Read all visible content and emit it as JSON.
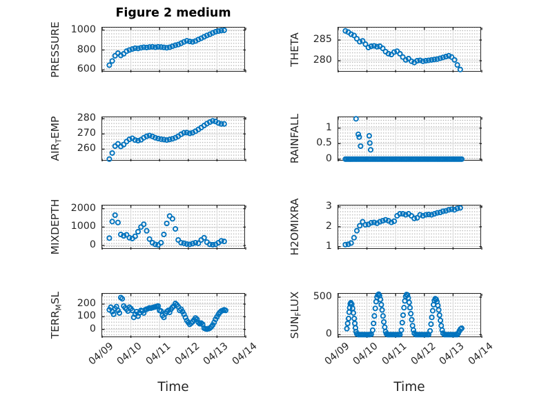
{
  "figure": {
    "title": "Figure 2 medium",
    "colors": {
      "marker": "#0072BD",
      "axis": "#222222",
      "grid_major": "#d9d9d9",
      "grid_minor": "#b3b3b3",
      "text": "#262626"
    }
  },
  "xaxis": {
    "label": "Time",
    "tick_labels": [
      "04/09",
      "04/10",
      "04/11",
      "04/12",
      "04/13",
      "04/14"
    ]
  },
  "chart_data": [
    {
      "type": "scatter",
      "key": "pressure",
      "ylabel_parts": [
        {
          "text": "PRESSURE",
          "sub": false
        }
      ],
      "ylim": [
        575,
        1025
      ],
      "yticks": [
        600,
        800,
        1000
      ],
      "xlim": [
        0,
        5
      ],
      "xticks": [
        0,
        1,
        2,
        3,
        4,
        5
      ],
      "show_xticklabels": false,
      "x": [
        0.25,
        0.35,
        0.45,
        0.55,
        0.65,
        0.75,
        0.85,
        0.95,
        1.05,
        1.15,
        1.25,
        1.35,
        1.45,
        1.55,
        1.65,
        1.75,
        1.85,
        1.95,
        2.05,
        2.15,
        2.25,
        2.35,
        2.45,
        2.55,
        2.65,
        2.75,
        2.85,
        2.95,
        3.05,
        3.15,
        3.25,
        3.35,
        3.45,
        3.55,
        3.65,
        3.75,
        3.85,
        3.95,
        4.05,
        4.15,
        4.25
      ],
      "y": [
        648,
        690,
        742,
        768,
        745,
        762,
        788,
        800,
        810,
        818,
        815,
        822,
        828,
        825,
        830,
        832,
        828,
        832,
        830,
        826,
        822,
        828,
        838,
        848,
        855,
        868,
        882,
        892,
        886,
        882,
        890,
        905,
        918,
        932,
        946,
        958,
        972,
        983,
        990,
        995,
        998
      ]
    },
    {
      "type": "scatter",
      "key": "theta",
      "ylabel_parts": [
        {
          "text": "THETA",
          "sub": false
        }
      ],
      "ylim": [
        277.2,
        288.0
      ],
      "yticks": [
        280,
        285
      ],
      "xlim": [
        0,
        5
      ],
      "xticks": [
        0,
        1,
        2,
        3,
        4,
        5
      ],
      "show_xticklabels": false,
      "x": [
        0.25,
        0.35,
        0.45,
        0.55,
        0.65,
        0.75,
        0.85,
        0.95,
        1.05,
        1.15,
        1.25,
        1.35,
        1.45,
        1.55,
        1.65,
        1.75,
        1.85,
        1.95,
        2.05,
        2.15,
        2.25,
        2.35,
        2.45,
        2.55,
        2.65,
        2.75,
        2.85,
        2.95,
        3.05,
        3.15,
        3.25,
        3.35,
        3.45,
        3.55,
        3.65,
        3.75,
        3.85,
        3.95,
        4.05,
        4.15,
        4.25
      ],
      "y": [
        287.2,
        286.9,
        286.4,
        286.1,
        285.3,
        284.6,
        284.8,
        284.0,
        283.2,
        283.5,
        283.6,
        283.4,
        283.5,
        283.0,
        282.2,
        281.7,
        281.5,
        282.1,
        282.3,
        281.7,
        280.9,
        280.2,
        280.5,
        279.9,
        279.6,
        280.0,
        280.1,
        279.9,
        280.0,
        280.1,
        280.2,
        280.3,
        280.4,
        280.6,
        280.8,
        281.0,
        281.2,
        280.9,
        280.2,
        279.0,
        277.9
      ]
    },
    {
      "type": "scatter",
      "key": "air-temp",
      "ylabel_parts": [
        {
          "text": "AIR",
          "sub": false
        },
        {
          "text": "T",
          "sub": true
        },
        {
          "text": "EMP",
          "sub": false
        }
      ],
      "ylim": [
        252,
        281
      ],
      "yticks": [
        260,
        270,
        280
      ],
      "xlim": [
        0,
        5
      ],
      "xticks": [
        0,
        1,
        2,
        3,
        4,
        5
      ],
      "show_xticklabels": false,
      "x": [
        0.25,
        0.35,
        0.45,
        0.55,
        0.65,
        0.75,
        0.85,
        0.95,
        1.05,
        1.15,
        1.25,
        1.35,
        1.45,
        1.55,
        1.65,
        1.75,
        1.85,
        1.95,
        2.05,
        2.15,
        2.25,
        2.35,
        2.45,
        2.55,
        2.65,
        2.75,
        2.85,
        2.95,
        3.05,
        3.15,
        3.25,
        3.35,
        3.45,
        3.55,
        3.65,
        3.75,
        3.85,
        3.95,
        4.05,
        4.15,
        4.25
      ],
      "y": [
        253.5,
        257.5,
        262.0,
        263.5,
        261.8,
        263.0,
        265.0,
        266.5,
        267.2,
        266.0,
        265.6,
        266.2,
        267.5,
        268.5,
        269.0,
        268.4,
        267.5,
        267.0,
        266.6,
        266.3,
        266.0,
        266.4,
        266.8,
        267.5,
        268.5,
        269.8,
        270.8,
        270.9,
        270.4,
        270.8,
        271.8,
        273.0,
        274.2,
        275.5,
        276.8,
        277.8,
        278.6,
        278.2,
        277.2,
        276.6,
        276.6
      ]
    },
    {
      "type": "scatter",
      "key": "rainfall",
      "ylabel_parts": [
        {
          "text": "RAINFALL",
          "sub": false
        }
      ],
      "ylim": [
        -0.07,
        1.35
      ],
      "yticks": [
        0,
        0.5,
        1
      ],
      "xlim": [
        0,
        5
      ],
      "xticks": [
        0,
        1,
        2,
        3,
        4,
        5
      ],
      "show_xticklabels": false,
      "x": [
        0.25,
        0.3,
        0.35,
        0.4,
        0.45,
        0.5,
        0.55,
        0.6,
        0.65,
        0.7,
        0.75,
        0.8,
        0.85,
        0.9,
        0.95,
        1.0,
        1.05,
        1.1,
        1.15,
        1.2,
        1.25,
        1.3,
        1.35,
        1.4,
        1.45,
        1.5,
        1.55,
        1.6,
        1.65,
        1.7,
        1.75,
        1.8,
        1.85,
        1.9,
        1.95,
        2.0,
        2.05,
        2.1,
        2.15,
        2.2,
        2.25,
        2.3,
        2.35,
        2.4,
        2.45,
        2.5,
        2.55,
        2.6,
        2.65,
        2.7,
        2.75,
        2.8,
        2.85,
        2.9,
        2.95,
        3.0,
        3.05,
        3.1,
        3.15,
        3.2,
        3.25,
        3.3,
        3.35,
        3.4,
        3.45,
        3.5,
        3.55,
        3.6,
        3.65,
        3.7,
        3.75,
        3.8,
        3.85,
        3.9,
        3.95,
        4.0,
        4.05,
        4.1,
        4.15,
        4.2,
        4.25,
        4.3,
        0.62,
        0.7,
        0.73,
        0.78,
        1.08,
        1.1,
        1.13
      ],
      "y": [
        0,
        0,
        0,
        0,
        0,
        0,
        0,
        0,
        0,
        0,
        0,
        0,
        0,
        0,
        0,
        0,
        0,
        0,
        0,
        0,
        0,
        0,
        0,
        0,
        0,
        0,
        0,
        0,
        0,
        0,
        0,
        0,
        0,
        0,
        0,
        0,
        0,
        0,
        0,
        0,
        0,
        0,
        0,
        0,
        0,
        0,
        0,
        0,
        0,
        0,
        0,
        0,
        0,
        0,
        0,
        0,
        0,
        0,
        0,
        0,
        0,
        0,
        0,
        0,
        0,
        0,
        0,
        0,
        0,
        0,
        0,
        0,
        0,
        0,
        0,
        0,
        0,
        0,
        0,
        0,
        0,
        0,
        1.3,
        0.8,
        0.71,
        0.42,
        0.75,
        0.52,
        0.3
      ]
    },
    {
      "type": "scatter",
      "key": "mixdepth",
      "ylabel_parts": [
        {
          "text": "MIXDEPTH",
          "sub": false
        }
      ],
      "ylim": [
        -225,
        2175
      ],
      "yticks": [
        0,
        1000,
        2000
      ],
      "xlim": [
        0,
        5
      ],
      "xticks": [
        0,
        1,
        2,
        3,
        4,
        5
      ],
      "show_xticklabels": false,
      "x": [
        0.25,
        0.35,
        0.45,
        0.55,
        0.65,
        0.75,
        0.85,
        0.95,
        1.05,
        1.15,
        1.25,
        1.35,
        1.45,
        1.55,
        1.65,
        1.75,
        1.85,
        1.95,
        2.05,
        2.15,
        2.25,
        2.35,
        2.45,
        2.55,
        2.65,
        2.75,
        2.85,
        2.95,
        3.05,
        3.15,
        3.25,
        3.35,
        3.45,
        3.55,
        3.65,
        3.75,
        3.85,
        3.95,
        4.05,
        4.15,
        4.25
      ],
      "y": [
        400,
        1300,
        1650,
        1250,
        600,
        520,
        580,
        420,
        380,
        500,
        750,
        1000,
        1150,
        800,
        350,
        150,
        60,
        30,
        150,
        600,
        1200,
        1600,
        1450,
        900,
        300,
        150,
        120,
        80,
        60,
        100,
        150,
        120,
        300,
        420,
        180,
        60,
        40,
        60,
        150,
        250,
        220
      ]
    },
    {
      "type": "scatter",
      "key": "h2omixra",
      "ylabel_parts": [
        {
          "text": "H2OMIXRA",
          "sub": false
        }
      ],
      "ylim": [
        0.85,
        3.07
      ],
      "yticks": [
        1,
        2,
        3
      ],
      "xlim": [
        0,
        5
      ],
      "xticks": [
        0,
        1,
        2,
        3,
        4,
        5
      ],
      "show_xticklabels": false,
      "x": [
        0.25,
        0.35,
        0.45,
        0.55,
        0.65,
        0.75,
        0.85,
        0.95,
        1.05,
        1.15,
        1.25,
        1.35,
        1.45,
        1.55,
        1.65,
        1.75,
        1.85,
        1.95,
        2.05,
        2.15,
        2.25,
        2.35,
        2.45,
        2.55,
        2.65,
        2.75,
        2.85,
        2.95,
        3.05,
        3.15,
        3.25,
        3.35,
        3.45,
        3.55,
        3.65,
        3.75,
        3.85,
        3.95,
        4.05,
        4.15,
        4.25
      ],
      "y": [
        1.1,
        1.12,
        1.18,
        1.45,
        1.8,
        2.05,
        2.25,
        2.1,
        2.12,
        2.2,
        2.22,
        2.18,
        2.25,
        2.3,
        2.35,
        2.3,
        2.22,
        2.28,
        2.55,
        2.65,
        2.65,
        2.6,
        2.65,
        2.55,
        2.42,
        2.45,
        2.6,
        2.55,
        2.6,
        2.62,
        2.6,
        2.65,
        2.7,
        2.72,
        2.78,
        2.8,
        2.85,
        2.88,
        2.85,
        2.92,
        2.95
      ]
    },
    {
      "type": "scatter",
      "key": "terr-msl",
      "ylabel_parts": [
        {
          "text": "TERR",
          "sub": false
        },
        {
          "text": "M",
          "sub": true
        },
        {
          "text": "SL",
          "sub": false
        }
      ],
      "ylim": [
        -67,
        282
      ],
      "yticks": [
        0,
        100,
        200
      ],
      "xlim": [
        0,
        5
      ],
      "xticks": [
        0,
        1,
        2,
        3,
        4,
        5
      ],
      "show_xticklabels": true,
      "x": [
        0.25,
        0.3,
        0.35,
        0.4,
        0.45,
        0.5,
        0.55,
        0.6,
        0.65,
        0.7,
        0.75,
        0.8,
        0.85,
        0.9,
        0.95,
        1.0,
        1.05,
        1.1,
        1.15,
        1.2,
        1.25,
        1.3,
        1.35,
        1.4,
        1.45,
        1.5,
        1.55,
        1.6,
        1.65,
        1.7,
        1.75,
        1.8,
        1.85,
        1.9,
        1.95,
        2.0,
        2.05,
        2.1,
        2.15,
        2.2,
        2.25,
        2.3,
        2.35,
        2.4,
        2.45,
        2.5,
        2.55,
        2.6,
        2.65,
        2.7,
        2.75,
        2.8,
        2.85,
        2.9,
        2.95,
        3.0,
        3.05,
        3.1,
        3.15,
        3.2,
        3.25,
        3.3,
        3.35,
        3.4,
        3.45,
        3.5,
        3.55,
        3.6,
        3.65,
        3.7,
        3.75,
        3.8,
        3.85,
        3.9,
        3.95,
        4.0,
        4.05,
        4.1,
        4.15,
        4.2,
        4.25,
        4.3
      ],
      "y": [
        155,
        175,
        140,
        120,
        165,
        180,
        150,
        130,
        252,
        242,
        185,
        170,
        160,
        145,
        175,
        165,
        150,
        95,
        120,
        140,
        105,
        130,
        150,
        145,
        130,
        155,
        160,
        165,
        170,
        168,
        172,
        175,
        178,
        182,
        185,
        150,
        145,
        110,
        95,
        125,
        140,
        150,
        135,
        160,
        175,
        185,
        205,
        195,
        180,
        150,
        160,
        140,
        120,
        95,
        70,
        55,
        40,
        50,
        60,
        75,
        90,
        80,
        55,
        45,
        50,
        40,
        10,
        5,
        2,
        5,
        10,
        20,
        35,
        55,
        80,
        100,
        120,
        135,
        145,
        150,
        155,
        150
      ]
    },
    {
      "type": "scatter",
      "key": "sun-flux",
      "ylabel_parts": [
        {
          "text": "SUN",
          "sub": false
        },
        {
          "text": "F",
          "sub": true
        },
        {
          "text": "LUX",
          "sub": false
        }
      ],
      "ylim": [
        -43,
        546
      ],
      "yticks": [
        0,
        500
      ],
      "xlim": [
        0,
        5
      ],
      "xticks": [
        0,
        1,
        2,
        3,
        4,
        5
      ],
      "show_xticklabels": true,
      "x": [
        0.3,
        0.33,
        0.36,
        0.38,
        0.4,
        0.42,
        0.44,
        0.47,
        0.5,
        0.53,
        0.56,
        0.58,
        0.6,
        0.62,
        0.65,
        0.7,
        0.75,
        0.8,
        0.85,
        0.9,
        0.95,
        1.0,
        1.05,
        1.1,
        1.15,
        1.2,
        1.23,
        1.26,
        1.29,
        1.32,
        1.35,
        1.38,
        1.41,
        1.44,
        1.47,
        1.5,
        1.53,
        1.56,
        1.59,
        1.62,
        1.65,
        1.68,
        1.72,
        1.76,
        1.8,
        1.85,
        1.9,
        1.95,
        2.0,
        2.05,
        2.1,
        2.15,
        2.2,
        2.23,
        2.26,
        2.29,
        2.32,
        2.35,
        2.38,
        2.41,
        2.44,
        2.47,
        2.5,
        2.53,
        2.56,
        2.59,
        2.62,
        2.65,
        2.7,
        2.75,
        2.8,
        2.85,
        2.9,
        2.95,
        3.0,
        3.05,
        3.1,
        3.15,
        3.2,
        3.23,
        3.26,
        3.29,
        3.32,
        3.35,
        3.38,
        3.41,
        3.44,
        3.47,
        3.5,
        3.53,
        3.56,
        3.59,
        3.62,
        3.65,
        3.7,
        3.75,
        3.8,
        3.85,
        3.9,
        3.95,
        4.0,
        4.05,
        4.1,
        4.15,
        4.18,
        4.22,
        4.26,
        4.3
      ],
      "y": [
        80,
        150,
        215,
        300,
        360,
        410,
        425,
        405,
        350,
        290,
        215,
        150,
        90,
        40,
        10,
        0,
        0,
        0,
        0,
        0,
        0,
        0,
        0,
        0,
        5,
        60,
        150,
        250,
        350,
        440,
        500,
        530,
        540,
        520,
        470,
        400,
        330,
        250,
        170,
        100,
        40,
        10,
        0,
        0,
        0,
        0,
        0,
        0,
        0,
        0,
        0,
        0,
        60,
        160,
        260,
        360,
        450,
        510,
        535,
        530,
        490,
        430,
        360,
        280,
        200,
        120,
        60,
        20,
        0,
        0,
        0,
        0,
        0,
        0,
        0,
        0,
        0,
        0,
        50,
        140,
        230,
        320,
        400,
        455,
        480,
        470,
        440,
        390,
        330,
        260,
        190,
        120,
        60,
        20,
        0,
        0,
        0,
        0,
        0,
        0,
        0,
        0,
        0,
        0,
        20,
        50,
        75,
        85
      ]
    }
  ]
}
